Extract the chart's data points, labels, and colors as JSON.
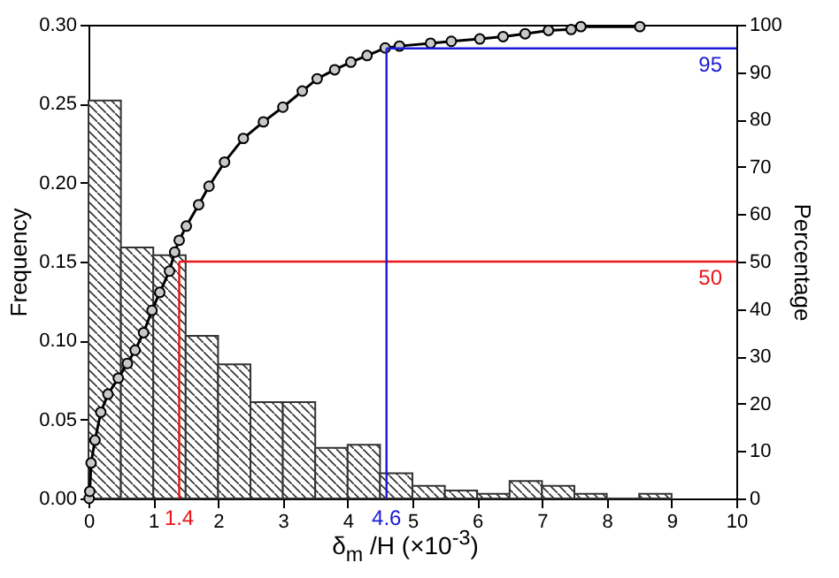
{
  "chart_data": {
    "type": "histogram",
    "xlabel": "δ$_{m}$ /H (×10$^{-3}$)",
    "ylabel": "Frequency",
    "y2label": "Percentage",
    "bins": [
      0,
      0.5,
      1,
      1.5,
      2,
      2.5,
      3,
      3.5,
      4,
      4.5,
      5,
      5.5,
      6,
      6.5,
      7,
      7.5,
      8,
      8.5,
      9
    ],
    "values": [
      0.252,
      0.159,
      0.154,
      0.103,
      0.085,
      0.061,
      0.061,
      0.032,
      0.034,
      0.016,
      0.008,
      0.005,
      0.003,
      0.011,
      0.008,
      0.003,
      0,
      0.003
    ],
    "color": "#333333",
    "series": [
      {
        "type": "line",
        "axis": "y2",
        "color": "#000000",
        "x": [
          0.01,
          0.02,
          0.04,
          0.1,
          0.19,
          0.3,
          0.46,
          0.6,
          0.72,
          0.85,
          0.98,
          1.1,
          1.25,
          1.33,
          1.4,
          1.51,
          1.7,
          1.86,
          2.1,
          2.39,
          2.7,
          3.0,
          3.3,
          3.53,
          3.8,
          4.05,
          4.3,
          4.58,
          4.8,
          5.28,
          5.6,
          6.04,
          6.4,
          6.74,
          7.1,
          7.45,
          7.6,
          8.51
        ],
        "values": [
          0,
          1.5,
          7.5,
          12.3,
          18.2,
          22,
          25.4,
          28.5,
          31.3,
          35,
          39.7,
          43.5,
          48,
          52,
          54.5,
          57.5,
          62,
          65.9,
          71,
          76,
          79.5,
          82.6,
          86,
          88.6,
          90.5,
          92.1,
          93.5,
          95.1,
          95.5,
          96.1,
          96.5,
          97,
          97.5,
          98.1,
          98.8,
          99,
          99.6,
          99.6
        ]
      }
    ],
    "marker": "circle",
    "xlim": [
      0,
      10
    ],
    "xticks": [
      0,
      1,
      2,
      3,
      4,
      5,
      6,
      7,
      8,
      9,
      10
    ],
    "ylim": [
      0,
      0.3
    ],
    "yticks": [
      {
        "value": 0,
        "label": "0.00"
      },
      0.05,
      {
        "value": 0.1,
        "label": "0.10"
      },
      0.15,
      {
        "value": 0.2,
        "label": "0.20"
      },
      0.25,
      {
        "value": 0.3,
        "label": "0.30"
      }
    ],
    "y2lim": [
      0,
      100
    ],
    "y2ticks": [
      0,
      10,
      20,
      30,
      40,
      50,
      60,
      70,
      80,
      90,
      100
    ],
    "ref_lines": [
      {
        "axis": "y2",
        "value": 50,
        "label": "50",
        "color": "#e8151b"
      },
      {
        "axis": "x",
        "value": 1.4,
        "label": "1.4",
        "color": "#e8151b"
      },
      {
        "axis": "y2",
        "value": 95,
        "label": "95",
        "color": "#1a1ad6"
      },
      {
        "axis": "x",
        "value": 4.6,
        "label": "4.6",
        "color": "#1a1ad6"
      }
    ]
  }
}
